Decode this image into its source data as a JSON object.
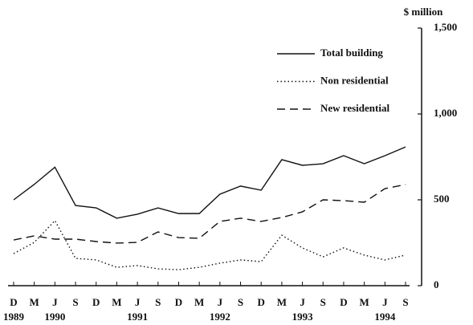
{
  "chart_data": {
    "type": "line",
    "y_unit_label": "$ million",
    "categories": [
      "D",
      "M",
      "J",
      "S",
      "D",
      "M",
      "J",
      "S",
      "D",
      "M",
      "J",
      "S",
      "D",
      "M",
      "J",
      "S",
      "D",
      "M",
      "J",
      "S"
    ],
    "x_year_labels": [
      "1989",
      null,
      "1990",
      null,
      null,
      null,
      "1991",
      null,
      null,
      null,
      "1992",
      null,
      null,
      null,
      "1993",
      null,
      null,
      null,
      "1994",
      null
    ],
    "series": [
      {
        "name": "Total building",
        "color": "#111111",
        "dash": "solid",
        "values": [
          500,
          590,
          690,
          467,
          453,
          393,
          416,
          453,
          420,
          420,
          533,
          580,
          556,
          734,
          701,
          710,
          757,
          710,
          757,
          808
        ]
      },
      {
        "name": "Non residential",
        "color": "#111111",
        "dash": "dotted",
        "values": [
          187,
          252,
          379,
          159,
          150,
          107,
          117,
          98,
          93,
          107,
          131,
          150,
          140,
          294,
          220,
          168,
          220,
          178,
          150,
          178
        ]
      },
      {
        "name": "New residential",
        "color": "#111111",
        "dash": "dashed",
        "values": [
          266,
          290,
          271,
          271,
          257,
          248,
          252,
          313,
          280,
          276,
          374,
          393,
          374,
          397,
          430,
          500,
          495,
          486,
          565,
          589
        ]
      }
    ],
    "ylim": [
      0,
      1500
    ],
    "yticks": [
      0,
      500,
      {
        "value": 1000,
        "label": "1,000"
      },
      {
        "value": 1500,
        "label": "1,500"
      }
    ],
    "y_axis_side": "right",
    "legend_position": "upper right"
  }
}
